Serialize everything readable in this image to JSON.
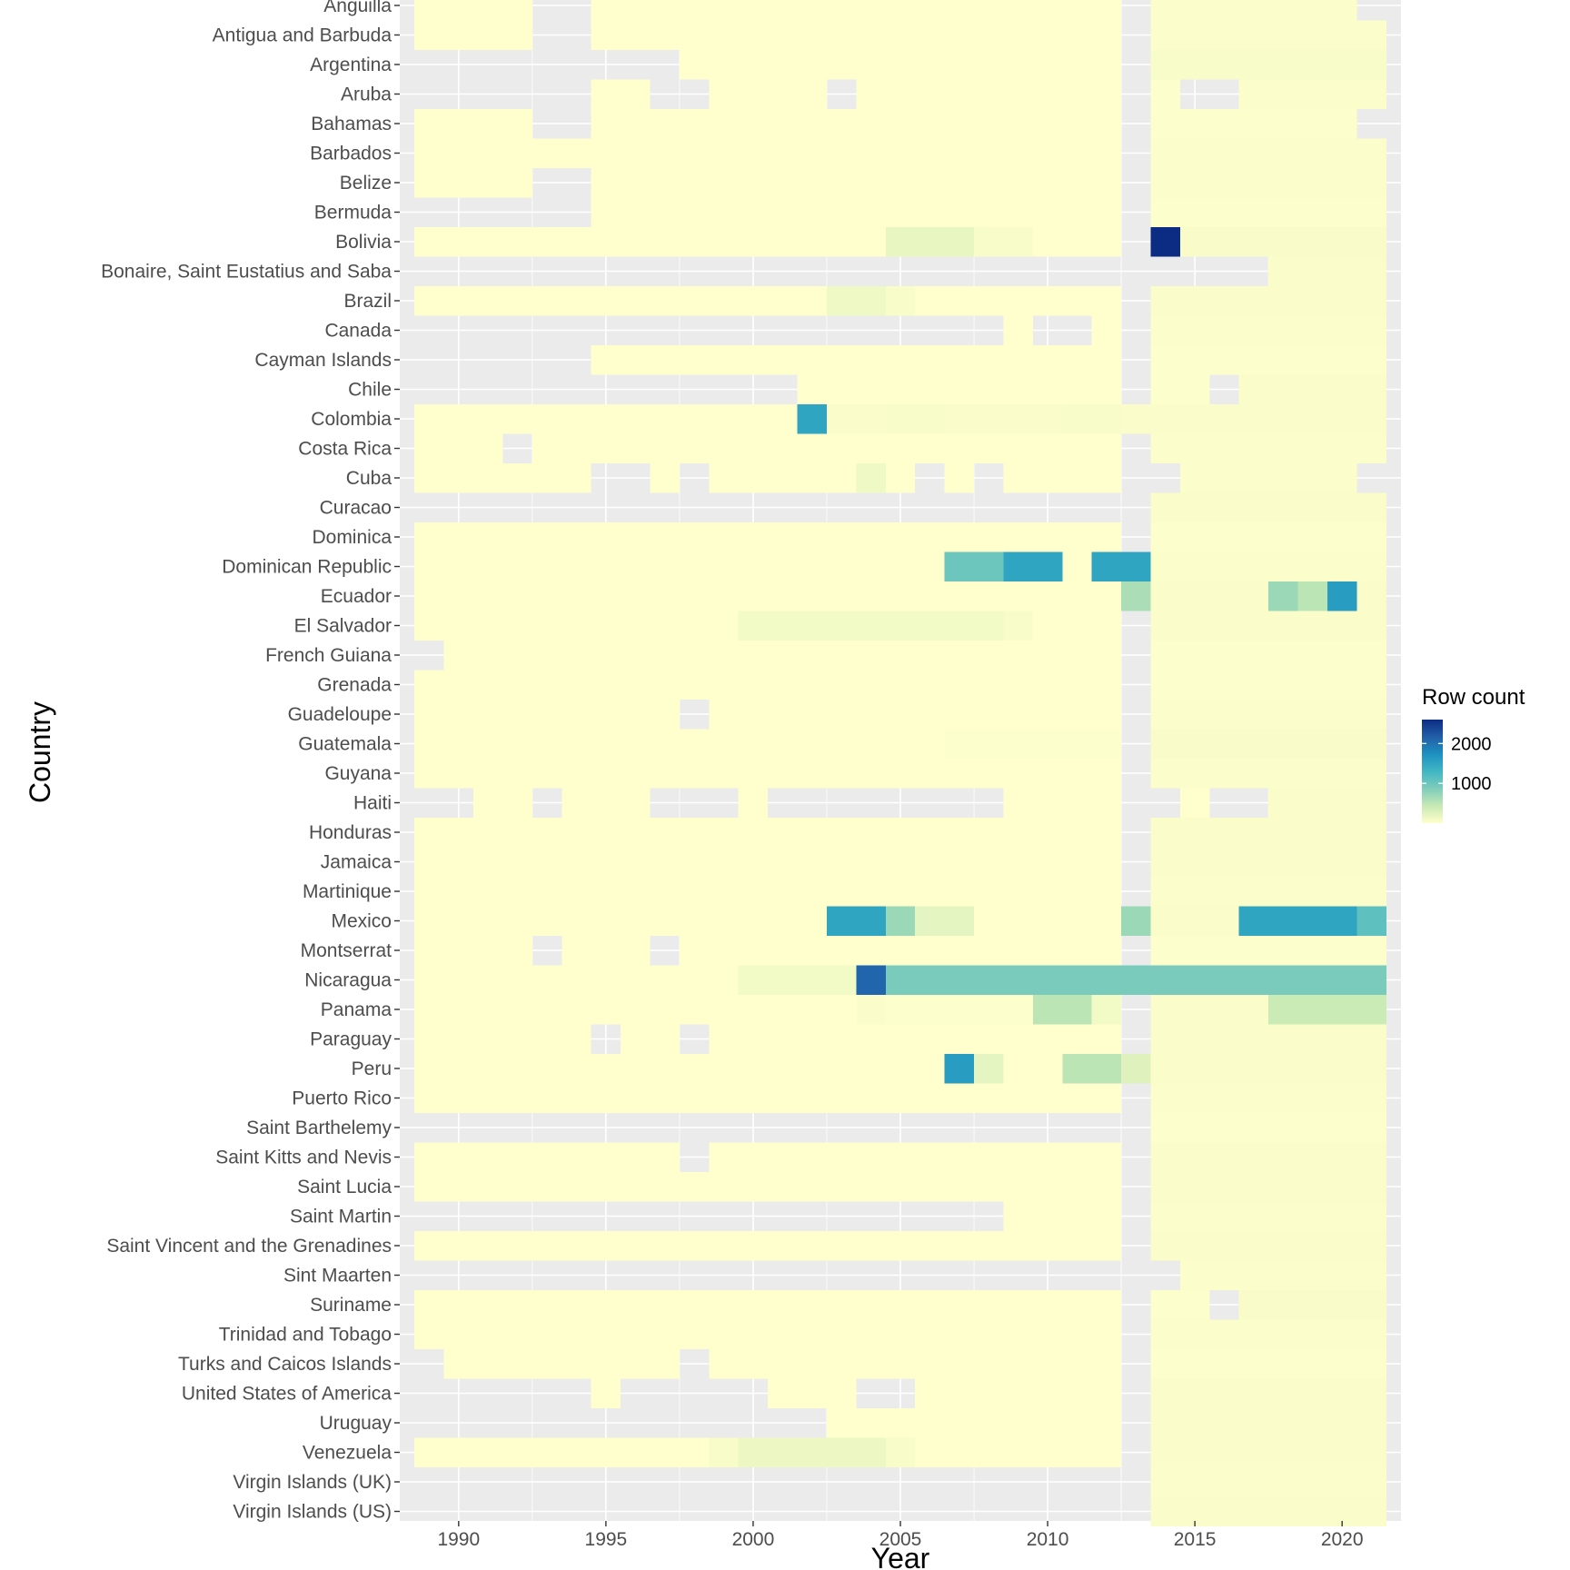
{
  "chart_data": {
    "type": "heatmap",
    "xlabel": "Year",
    "ylabel": "Country",
    "legend_title": "Row count",
    "legend_position": "right",
    "legend_ticks": [
      2000,
      1000
    ],
    "fill_range": [
      0,
      2600
    ],
    "missing_color": "#ebebeb",
    "panel_background": "#ebebeb",
    "palette": [
      "#ffffcc",
      "#c7e9b4",
      "#7fcdbb",
      "#41b6c4",
      "#1d91c0",
      "#225ea8",
      "#0c2c84"
    ],
    "x_ticks": [
      1990,
      1995,
      2000,
      2005,
      2010,
      2015,
      2020
    ],
    "x_range": [
      1988,
      2022
    ],
    "years": [
      1989,
      1990,
      1991,
      1992,
      1993,
      1994,
      1995,
      1996,
      1997,
      1998,
      1999,
      2000,
      2001,
      2002,
      2003,
      2004,
      2005,
      2006,
      2007,
      2008,
      2009,
      2010,
      2011,
      2012,
      2013,
      2014,
      2015,
      2016,
      2017,
      2018,
      2019,
      2020,
      2021
    ],
    "countries": [
      {
        "name": "Anguilla",
        "spans": [
          [
            1989,
            1992,
            5
          ],
          [
            1995,
            2012,
            5
          ],
          [
            2014,
            2020,
            30
          ]
        ]
      },
      {
        "name": "Antigua and Barbuda",
        "spans": [
          [
            1989,
            1992,
            5
          ],
          [
            1995,
            2012,
            5
          ],
          [
            2014,
            2021,
            30
          ]
        ]
      },
      {
        "name": "Argentina",
        "spans": [
          [
            1998,
            2012,
            5
          ],
          [
            2014,
            2021,
            60
          ]
        ]
      },
      {
        "name": "Aruba",
        "spans": [
          [
            1995,
            1996,
            5
          ],
          [
            1999,
            2002,
            5
          ],
          [
            2004,
            2012,
            5
          ],
          [
            2014,
            2014,
            20
          ],
          [
            2017,
            2021,
            30
          ]
        ]
      },
      {
        "name": "Bahamas",
        "spans": [
          [
            1989,
            1992,
            5
          ],
          [
            1995,
            2012,
            5
          ],
          [
            2014,
            2020,
            20
          ]
        ]
      },
      {
        "name": "Barbados",
        "spans": [
          [
            1989,
            2012,
            5
          ],
          [
            2014,
            2021,
            30
          ]
        ]
      },
      {
        "name": "Belize",
        "spans": [
          [
            1989,
            1992,
            5
          ],
          [
            1995,
            2012,
            5
          ],
          [
            2014,
            2021,
            30
          ]
        ]
      },
      {
        "name": "Bermuda",
        "spans": [
          [
            1995,
            2012,
            5
          ],
          [
            2014,
            2021,
            20
          ]
        ]
      },
      {
        "name": "Bolivia",
        "spans": [
          [
            1989,
            2004,
            5
          ],
          [
            2005,
            2007,
            180
          ],
          [
            2008,
            2009,
            60
          ],
          [
            2010,
            2012,
            5
          ],
          [
            2014,
            2014,
            2600
          ],
          [
            2015,
            2021,
            50
          ]
        ]
      },
      {
        "name": "Bonaire, Saint Eustatius and Saba",
        "spans": [
          [
            2018,
            2021,
            40
          ]
        ]
      },
      {
        "name": "Brazil",
        "spans": [
          [
            1989,
            2002,
            5
          ],
          [
            2003,
            2004,
            120
          ],
          [
            2005,
            2005,
            60
          ],
          [
            2006,
            2012,
            5
          ],
          [
            2014,
            2021,
            40
          ]
        ]
      },
      {
        "name": "Canada",
        "spans": [
          [
            2009,
            2009,
            5
          ],
          [
            2012,
            2012,
            5
          ],
          [
            2014,
            2021,
            30
          ]
        ]
      },
      {
        "name": "Cayman Islands",
        "spans": [
          [
            1995,
            2012,
            5
          ],
          [
            2014,
            2021,
            20
          ]
        ]
      },
      {
        "name": "Chile",
        "spans": [
          [
            2002,
            2012,
            5
          ],
          [
            2014,
            2015,
            20
          ],
          [
            2017,
            2021,
            40
          ]
        ]
      },
      {
        "name": "Colombia",
        "spans": [
          [
            1989,
            2001,
            5
          ],
          [
            2002,
            2002,
            1500
          ],
          [
            2003,
            2004,
            40
          ],
          [
            2005,
            2006,
            60
          ],
          [
            2007,
            2010,
            40
          ],
          [
            2011,
            2012,
            60
          ],
          [
            2013,
            2021,
            40
          ]
        ]
      },
      {
        "name": "Costa Rica",
        "spans": [
          [
            1989,
            1991,
            5
          ],
          [
            1993,
            2012,
            5
          ],
          [
            2014,
            2021,
            30
          ]
        ]
      },
      {
        "name": "Cuba",
        "spans": [
          [
            1989,
            1994,
            5
          ],
          [
            1997,
            1997,
            5
          ],
          [
            1999,
            2003,
            5
          ],
          [
            2004,
            2004,
            120
          ],
          [
            2005,
            2005,
            5
          ],
          [
            2007,
            2007,
            5
          ],
          [
            2009,
            2012,
            5
          ],
          [
            2015,
            2020,
            30
          ]
        ]
      },
      {
        "name": "Curacao",
        "spans": [
          [
            2014,
            2021,
            40
          ]
        ]
      },
      {
        "name": "Dominica",
        "spans": [
          [
            1989,
            2012,
            5
          ],
          [
            2014,
            2021,
            20
          ]
        ]
      },
      {
        "name": "Dominican Republic",
        "spans": [
          [
            1989,
            2006,
            5
          ],
          [
            2007,
            2008,
            1000
          ],
          [
            2009,
            2010,
            1500
          ],
          [
            2011,
            2011,
            5
          ],
          [
            2012,
            2013,
            1500
          ],
          [
            2014,
            2021,
            30
          ]
        ]
      },
      {
        "name": "Ecuador",
        "spans": [
          [
            1989,
            2012,
            5
          ],
          [
            2013,
            2013,
            600
          ],
          [
            2014,
            2017,
            40
          ],
          [
            2018,
            2018,
            700
          ],
          [
            2019,
            2019,
            500
          ],
          [
            2020,
            2020,
            1600
          ],
          [
            2021,
            2021,
            40
          ]
        ]
      },
      {
        "name": "El Salvador",
        "spans": [
          [
            1989,
            1999,
            5
          ],
          [
            2000,
            2008,
            100
          ],
          [
            2009,
            2009,
            60
          ],
          [
            2010,
            2012,
            5
          ],
          [
            2014,
            2021,
            40
          ]
        ]
      },
      {
        "name": "French Guiana",
        "spans": [
          [
            1990,
            2012,
            5
          ],
          [
            2014,
            2021,
            20
          ]
        ]
      },
      {
        "name": "Grenada",
        "spans": [
          [
            1989,
            2012,
            5
          ],
          [
            2014,
            2021,
            20
          ]
        ]
      },
      {
        "name": "Guadeloupe",
        "spans": [
          [
            1989,
            1997,
            5
          ],
          [
            1999,
            2012,
            5
          ],
          [
            2014,
            2021,
            30
          ]
        ]
      },
      {
        "name": "Guatemala",
        "spans": [
          [
            1989,
            2006,
            5
          ],
          [
            2007,
            2012,
            20
          ],
          [
            2014,
            2021,
            50
          ]
        ]
      },
      {
        "name": "Guyana",
        "spans": [
          [
            1989,
            2012,
            5
          ],
          [
            2014,
            2021,
            30
          ]
        ]
      },
      {
        "name": "Haiti",
        "spans": [
          [
            1991,
            1992,
            5
          ],
          [
            1994,
            1996,
            5
          ],
          [
            2000,
            2000,
            5
          ],
          [
            2009,
            2012,
            5
          ],
          [
            2015,
            2015,
            5
          ],
          [
            2018,
            2021,
            40
          ]
        ]
      },
      {
        "name": "Honduras",
        "spans": [
          [
            1989,
            2012,
            5
          ],
          [
            2014,
            2021,
            40
          ]
        ]
      },
      {
        "name": "Jamaica",
        "spans": [
          [
            1989,
            2012,
            5
          ],
          [
            2014,
            2021,
            40
          ]
        ]
      },
      {
        "name": "Martinique",
        "spans": [
          [
            1989,
            2012,
            5
          ],
          [
            2014,
            2021,
            30
          ]
        ]
      },
      {
        "name": "Mexico",
        "spans": [
          [
            1989,
            2002,
            5
          ],
          [
            2003,
            2004,
            1500
          ],
          [
            2005,
            2005,
            700
          ],
          [
            2006,
            2007,
            200
          ],
          [
            2008,
            2012,
            5
          ],
          [
            2013,
            2013,
            700
          ],
          [
            2014,
            2016,
            40
          ],
          [
            2017,
            2020,
            1500
          ],
          [
            2021,
            2021,
            1100
          ]
        ]
      },
      {
        "name": "Montserrat",
        "spans": [
          [
            1989,
            1992,
            5
          ],
          [
            1994,
            1996,
            5
          ],
          [
            1998,
            2012,
            5
          ],
          [
            2014,
            2021,
            20
          ]
        ]
      },
      {
        "name": "Nicaragua",
        "spans": [
          [
            1989,
            1999,
            5
          ],
          [
            2000,
            2003,
            100
          ],
          [
            2004,
            2004,
            2100
          ],
          [
            2005,
            2021,
            900
          ]
        ]
      },
      {
        "name": "Panama",
        "spans": [
          [
            1989,
            2003,
            5
          ],
          [
            2004,
            2004,
            40
          ],
          [
            2005,
            2009,
            20
          ],
          [
            2010,
            2011,
            500
          ],
          [
            2012,
            2012,
            100
          ],
          [
            2014,
            2017,
            40
          ],
          [
            2018,
            2021,
            400
          ]
        ]
      },
      {
        "name": "Paraguay",
        "spans": [
          [
            1989,
            1994,
            5
          ],
          [
            1996,
            1997,
            5
          ],
          [
            1999,
            2012,
            5
          ],
          [
            2014,
            2021,
            40
          ]
        ]
      },
      {
        "name": "Peru",
        "spans": [
          [
            1989,
            2006,
            5
          ],
          [
            2007,
            2007,
            1600
          ],
          [
            2008,
            2008,
            200
          ],
          [
            2009,
            2010,
            5
          ],
          [
            2011,
            2012,
            500
          ],
          [
            2013,
            2013,
            250
          ],
          [
            2014,
            2021,
            40
          ]
        ]
      },
      {
        "name": "Puerto Rico",
        "spans": [
          [
            1989,
            2012,
            5
          ],
          [
            2014,
            2021,
            30
          ]
        ]
      },
      {
        "name": "Saint Barthelemy",
        "spans": [
          [
            2014,
            2021,
            20
          ]
        ]
      },
      {
        "name": "Saint Kitts and Nevis",
        "spans": [
          [
            1989,
            1997,
            5
          ],
          [
            1999,
            2012,
            5
          ],
          [
            2014,
            2021,
            40
          ]
        ]
      },
      {
        "name": "Saint Lucia",
        "spans": [
          [
            1989,
            2012,
            5
          ],
          [
            2014,
            2021,
            40
          ]
        ]
      },
      {
        "name": "Saint Martin",
        "spans": [
          [
            2009,
            2012,
            5
          ],
          [
            2014,
            2021,
            30
          ]
        ]
      },
      {
        "name": "Saint Vincent and the Grenadines",
        "spans": [
          [
            1989,
            2012,
            5
          ],
          [
            2014,
            2021,
            40
          ]
        ]
      },
      {
        "name": "Sint Maarten",
        "spans": [
          [
            2015,
            2021,
            30
          ]
        ]
      },
      {
        "name": "Suriname",
        "spans": [
          [
            1989,
            2012,
            5
          ],
          [
            2014,
            2015,
            20
          ],
          [
            2017,
            2021,
            50
          ]
        ]
      },
      {
        "name": "Trinidad and Tobago",
        "spans": [
          [
            1989,
            2012,
            5
          ],
          [
            2014,
            2021,
            30
          ]
        ]
      },
      {
        "name": "Turks and Caicos Islands",
        "spans": [
          [
            1990,
            1997,
            5
          ],
          [
            1999,
            2012,
            5
          ],
          [
            2014,
            2021,
            20
          ]
        ]
      },
      {
        "name": "United States of America",
        "spans": [
          [
            1995,
            1995,
            5
          ],
          [
            2001,
            2003,
            5
          ],
          [
            2006,
            2012,
            5
          ],
          [
            2014,
            2021,
            40
          ]
        ]
      },
      {
        "name": "Uruguay",
        "spans": [
          [
            2003,
            2012,
            5
          ],
          [
            2014,
            2021,
            40
          ]
        ]
      },
      {
        "name": "Venezuela",
        "spans": [
          [
            1989,
            1998,
            5
          ],
          [
            1999,
            1999,
            60
          ],
          [
            2000,
            2004,
            150
          ],
          [
            2005,
            2005,
            60
          ],
          [
            2006,
            2012,
            5
          ],
          [
            2014,
            2021,
            40
          ]
        ]
      },
      {
        "name": "Virgin Islands (UK)",
        "spans": [
          [
            2014,
            2021,
            30
          ]
        ]
      },
      {
        "name": "Virgin Islands (US)",
        "spans": [
          [
            2014,
            2021,
            40
          ]
        ]
      }
    ]
  }
}
